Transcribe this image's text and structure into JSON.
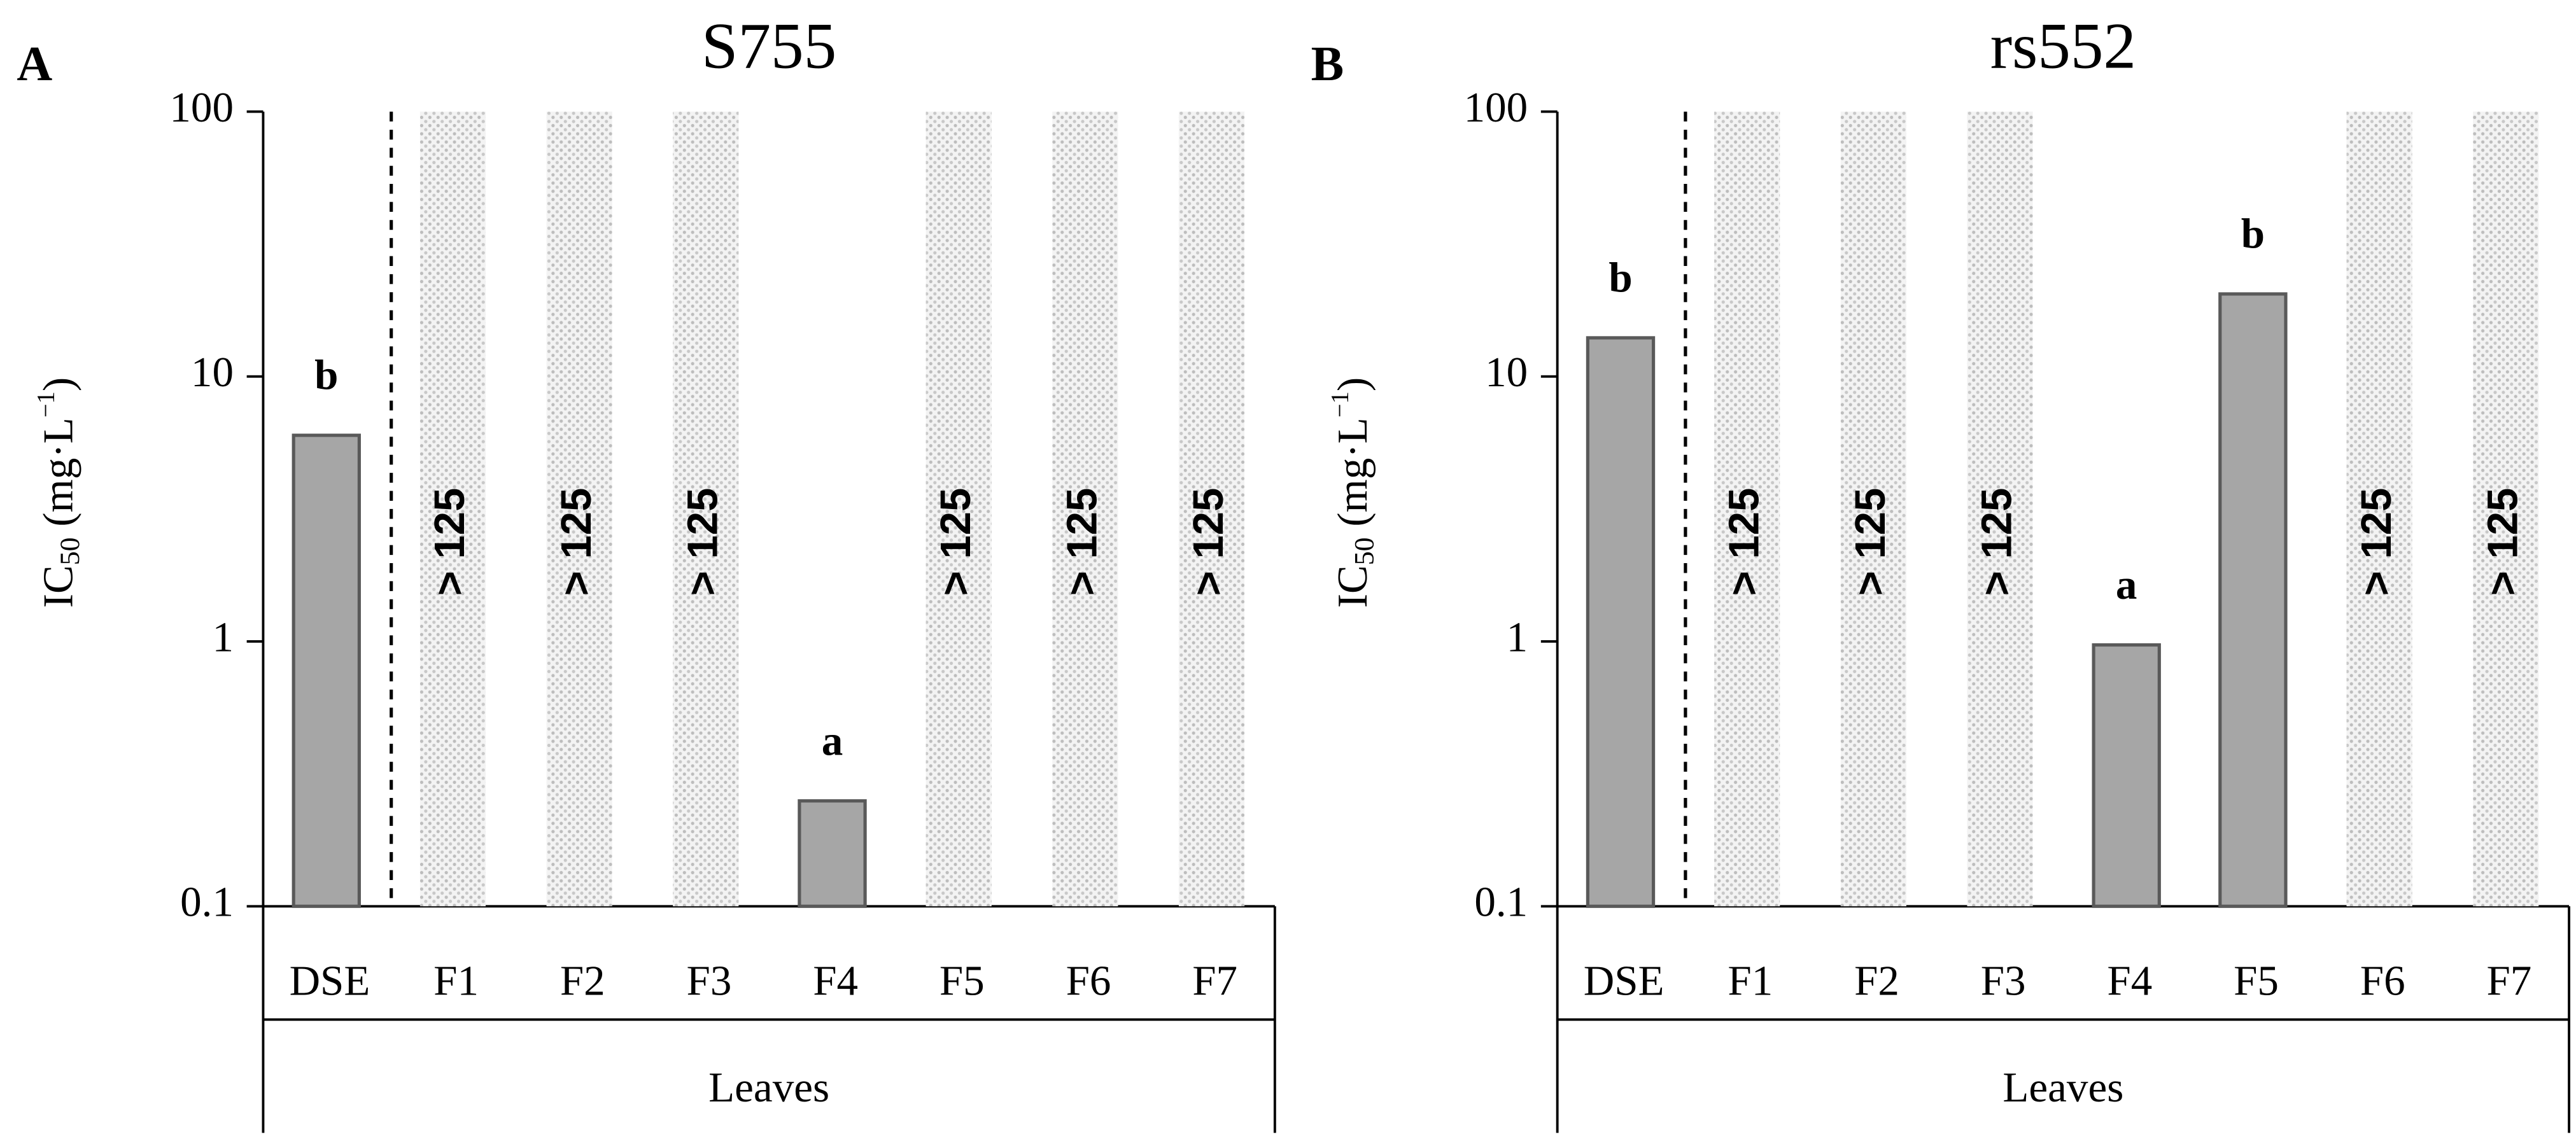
{
  "chart_data": [
    {
      "type": "bar",
      "panel": "A",
      "title": "S755",
      "y_label": {
        "base": "IC",
        "sub": "50",
        "unit": " (mg·L",
        "sup": "−1",
        "end": ")"
      },
      "group_label": "Leaves",
      "categories": [
        "DSE",
        "F1",
        "F2",
        "F3",
        "F4",
        "F5",
        "F6",
        "F7"
      ],
      "values": [
        6,
        null,
        null,
        null,
        0.25,
        null,
        null,
        null
      ],
      "letters": [
        "b",
        null,
        null,
        null,
        "a",
        null,
        null,
        null
      ],
      "overflow_labels": [
        null,
        "> 125",
        "> 125",
        "> 125",
        null,
        "> 125",
        "> 125",
        "> 125"
      ],
      "color": "#a6a6a6",
      "log_scale": true,
      "ylim": [
        0.1,
        100
      ],
      "yticks": [
        0.1,
        1,
        10,
        100
      ]
    },
    {
      "type": "bar",
      "panel": "B",
      "title": "rs552",
      "y_label": {
        "base": "IC",
        "sub": "50",
        "unit": " (mg·L",
        "sup": "−1",
        "end": ")"
      },
      "group_label": "Leaves",
      "categories": [
        "DSE",
        "F1",
        "F2",
        "F3",
        "F4",
        "F5",
        "F6",
        "F7"
      ],
      "values": [
        14,
        null,
        null,
        null,
        0.97,
        20.5,
        null,
        null
      ],
      "letters": [
        "b",
        null,
        null,
        null,
        "a",
        "b",
        null,
        null
      ],
      "overflow_labels": [
        null,
        "> 125",
        "> 125",
        "> 125",
        null,
        null,
        "> 125",
        "> 125"
      ],
      "color": "#a6a6a6",
      "log_scale": true,
      "ylim": [
        0.1,
        100
      ],
      "yticks": [
        0.1,
        1,
        10,
        100
      ]
    }
  ]
}
